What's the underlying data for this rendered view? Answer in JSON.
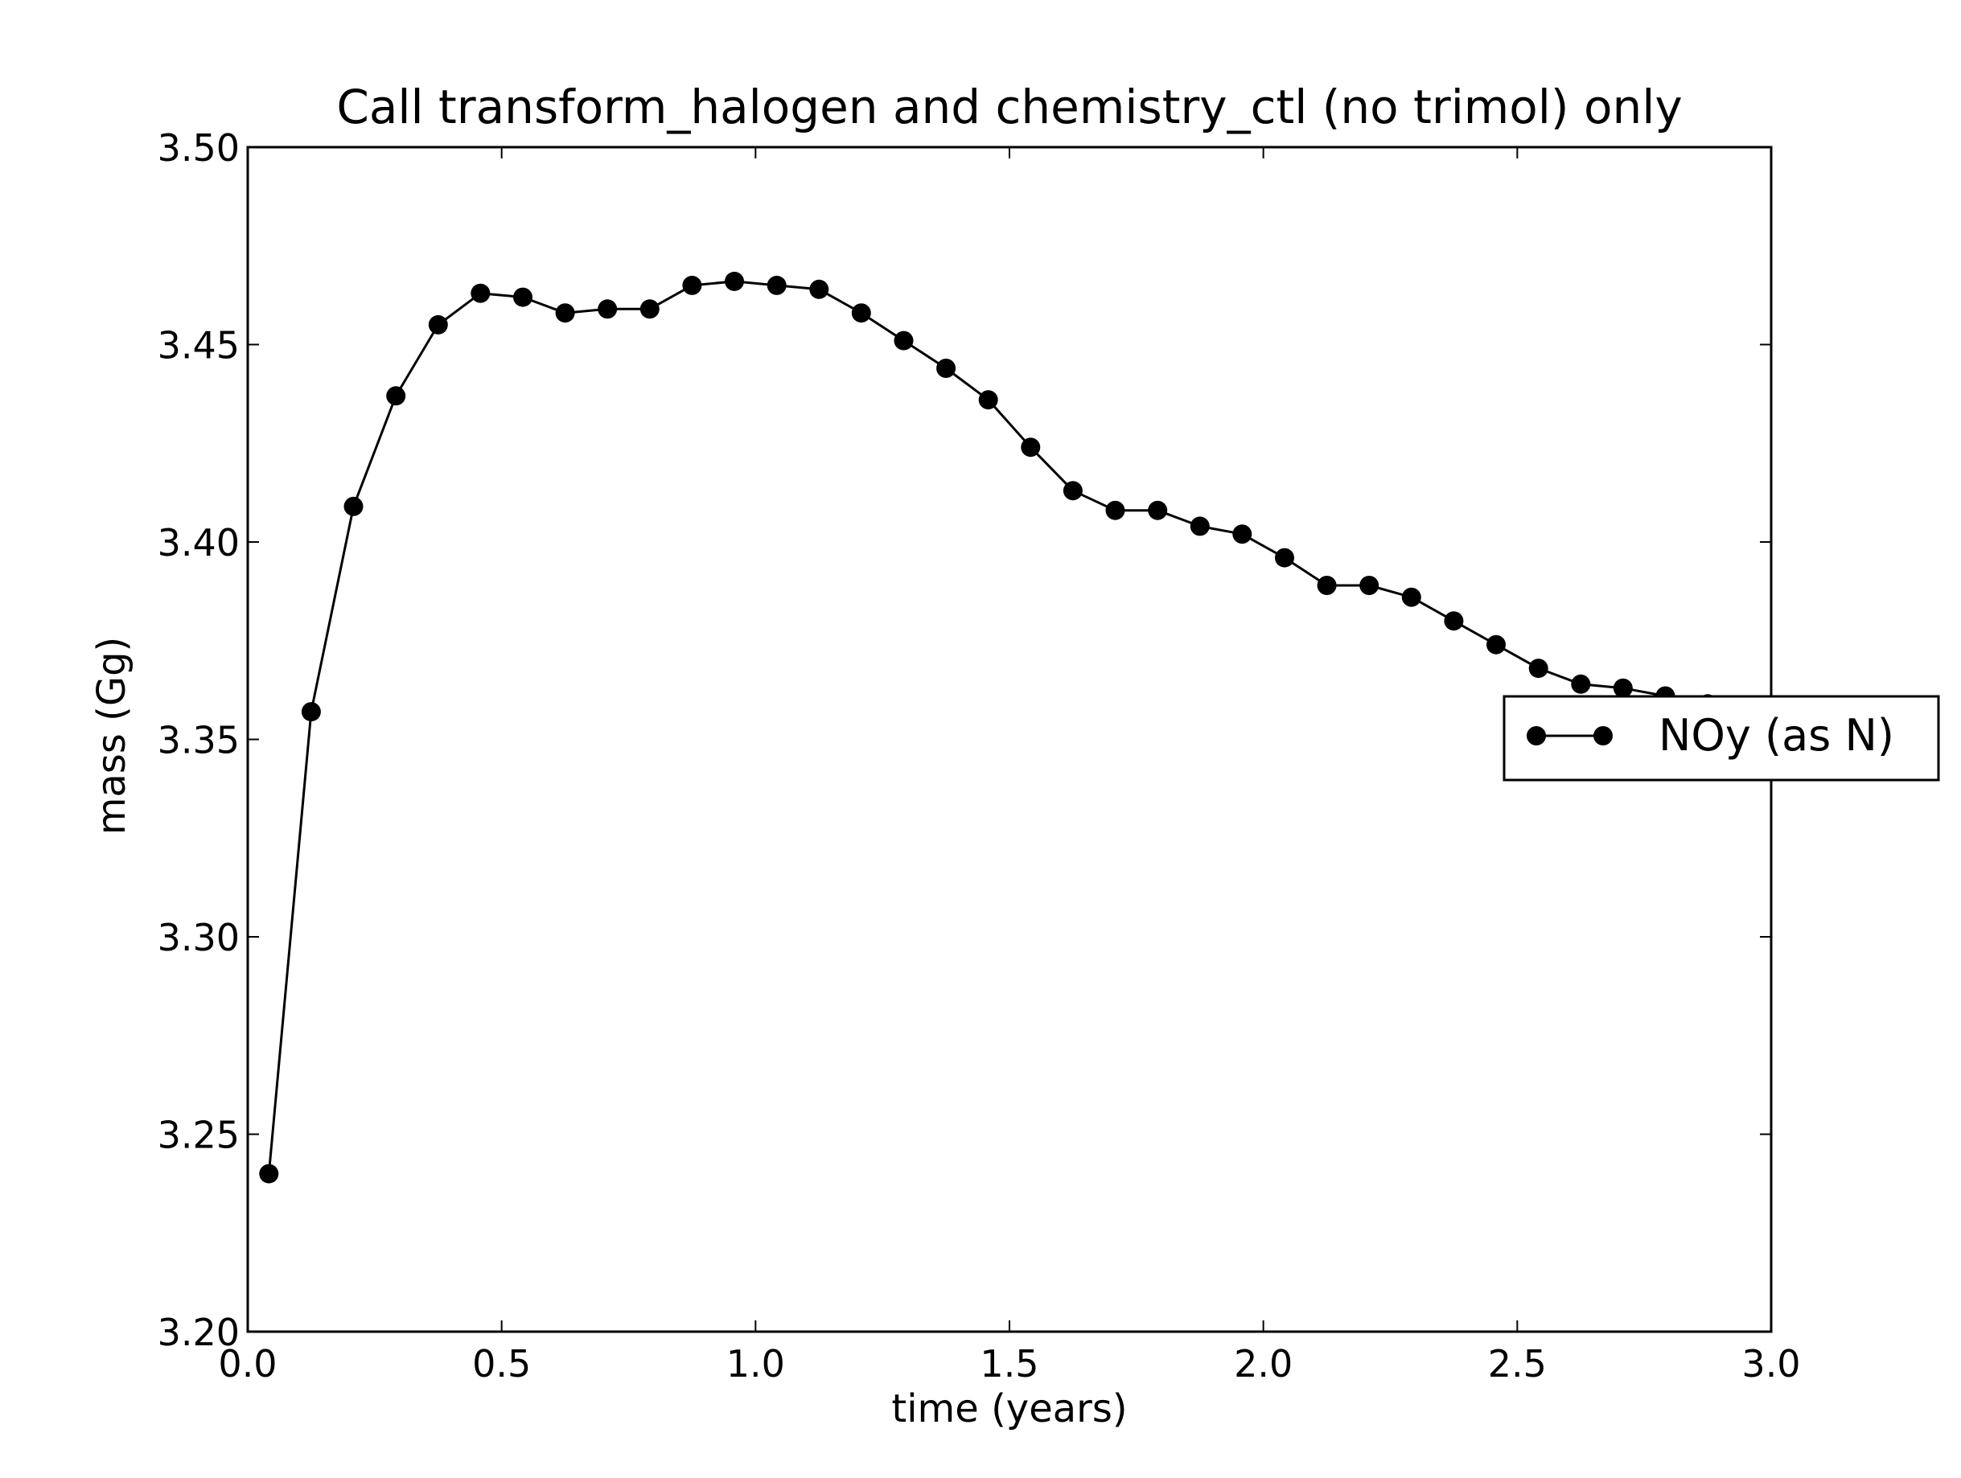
{
  "chart_data": {
    "type": "line",
    "title": "Call transform_halogen and chemistry_ctl (no trimol) only",
    "xlabel": "time (years)",
    "ylabel": "mass (Gg)",
    "xlim": [
      0.0,
      3.0
    ],
    "ylim": [
      3.2,
      3.5
    ],
    "xticks": [
      "0.0",
      "0.5",
      "1.0",
      "1.5",
      "2.0",
      "2.5",
      "3.0"
    ],
    "yticks": [
      "3.20",
      "3.25",
      "3.30",
      "3.35",
      "3.40",
      "3.45",
      "3.50"
    ],
    "grid": false,
    "legend_position": "right",
    "series": [
      {
        "name": "NOy (as N)",
        "color": "#000000",
        "marker": "circle",
        "x": [
          0.0417,
          0.125,
          0.2083,
          0.2917,
          0.375,
          0.4583,
          0.5417,
          0.625,
          0.7083,
          0.7917,
          0.875,
          0.9583,
          1.0417,
          1.125,
          1.2083,
          1.2917,
          1.375,
          1.4583,
          1.5417,
          1.625,
          1.7083,
          1.7917,
          1.875,
          1.9583,
          2.0417,
          2.125,
          2.2083,
          2.2917,
          2.375,
          2.4583,
          2.5417,
          2.625,
          2.7083,
          2.7917,
          2.875,
          2.9583
        ],
        "y": [
          3.24,
          3.357,
          3.409,
          3.437,
          3.455,
          3.463,
          3.462,
          3.458,
          3.459,
          3.459,
          3.465,
          3.466,
          3.465,
          3.464,
          3.458,
          3.451,
          3.444,
          3.436,
          3.424,
          3.413,
          3.408,
          3.408,
          3.404,
          3.402,
          3.396,
          3.389,
          3.389,
          3.386,
          3.38,
          3.374,
          3.368,
          3.364,
          3.363,
          3.361,
          3.359,
          3.357
        ]
      }
    ]
  }
}
